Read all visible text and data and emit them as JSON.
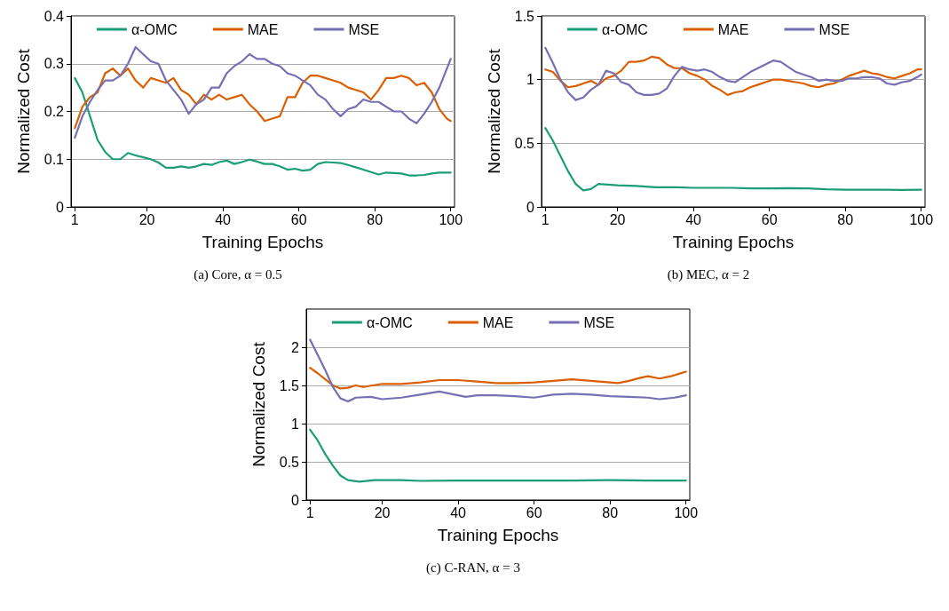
{
  "chart_data": [
    {
      "type": "line",
      "xlabel": "Training Epochs",
      "ylabel": "Normalized Cost",
      "annotations": [
        "(a) Core, α = 0.5"
      ],
      "xlim": [
        0,
        101
      ],
      "xticks": [
        1,
        20,
        40,
        60,
        80,
        100
      ],
      "ylim": [
        0,
        0.4
      ],
      "yticks": [
        0,
        0.1,
        0.2,
        0.3,
        0.4
      ],
      "grid": "y",
      "legend": "top",
      "line_style": "solid",
      "marker": "none",
      "series": [
        {
          "name": "α-OMC",
          "color": "#1b9e77",
          "x": [
            1,
            3,
            5,
            7,
            9,
            11,
            13,
            15,
            17,
            19,
            21,
            23,
            25,
            27,
            29,
            31,
            33,
            35,
            37,
            39,
            41,
            43,
            45,
            47,
            49,
            51,
            53,
            55,
            57,
            59,
            61,
            63,
            65,
            67,
            69,
            71,
            73,
            75,
            77,
            79,
            81,
            83,
            85,
            87,
            89,
            91,
            93,
            95,
            97,
            99,
            100
          ],
          "values": [
            0.27,
            0.24,
            0.19,
            0.14,
            0.115,
            0.1,
            0.1,
            0.113,
            0.108,
            0.104,
            0.1,
            0.093,
            0.082,
            0.082,
            0.085,
            0.082,
            0.085,
            0.09,
            0.088,
            0.094,
            0.097,
            0.09,
            0.094,
            0.099,
            0.095,
            0.09,
            0.09,
            0.085,
            0.078,
            0.08,
            0.076,
            0.078,
            0.09,
            0.094,
            0.093,
            0.092,
            0.088,
            0.083,
            0.078,
            0.073,
            0.068,
            0.072,
            0.071,
            0.07,
            0.066,
            0.066,
            0.067,
            0.07,
            0.072,
            0.072,
            0.072
          ]
        },
        {
          "name": "MAE",
          "color": "#d95f02",
          "x": [
            1,
            3,
            5,
            7,
            9,
            11,
            13,
            15,
            17,
            19,
            21,
            23,
            25,
            27,
            29,
            31,
            33,
            35,
            37,
            39,
            41,
            43,
            45,
            47,
            49,
            51,
            53,
            55,
            57,
            59,
            61,
            63,
            65,
            67,
            69,
            71,
            73,
            75,
            77,
            79,
            81,
            83,
            85,
            87,
            89,
            91,
            93,
            95,
            97,
            99,
            100
          ],
          "values": [
            0.165,
            0.21,
            0.23,
            0.24,
            0.28,
            0.29,
            0.275,
            0.29,
            0.265,
            0.25,
            0.27,
            0.265,
            0.26,
            0.27,
            0.245,
            0.235,
            0.215,
            0.235,
            0.225,
            0.235,
            0.225,
            0.23,
            0.235,
            0.215,
            0.2,
            0.18,
            0.185,
            0.19,
            0.23,
            0.23,
            0.26,
            0.275,
            0.275,
            0.27,
            0.265,
            0.26,
            0.25,
            0.245,
            0.24,
            0.225,
            0.245,
            0.27,
            0.27,
            0.275,
            0.27,
            0.255,
            0.26,
            0.24,
            0.205,
            0.185,
            0.18
          ]
        },
        {
          "name": "MSE",
          "color": "#7570b3",
          "x": [
            1,
            3,
            5,
            7,
            9,
            11,
            13,
            15,
            17,
            19,
            21,
            23,
            25,
            27,
            29,
            31,
            33,
            35,
            37,
            39,
            41,
            43,
            45,
            47,
            49,
            51,
            53,
            55,
            57,
            59,
            61,
            63,
            65,
            67,
            69,
            71,
            73,
            75,
            77,
            79,
            81,
            83,
            85,
            87,
            89,
            91,
            93,
            95,
            97,
            99,
            100
          ],
          "values": [
            0.145,
            0.19,
            0.22,
            0.245,
            0.265,
            0.265,
            0.275,
            0.3,
            0.335,
            0.32,
            0.305,
            0.3,
            0.265,
            0.245,
            0.225,
            0.195,
            0.215,
            0.225,
            0.25,
            0.25,
            0.28,
            0.295,
            0.305,
            0.32,
            0.31,
            0.31,
            0.3,
            0.295,
            0.28,
            0.275,
            0.265,
            0.255,
            0.235,
            0.225,
            0.205,
            0.19,
            0.205,
            0.21,
            0.225,
            0.22,
            0.22,
            0.21,
            0.2,
            0.2,
            0.185,
            0.175,
            0.195,
            0.22,
            0.25,
            0.29,
            0.31
          ]
        }
      ]
    },
    {
      "type": "line",
      "xlabel": "Training Epochs",
      "ylabel": "Normalized Cost",
      "annotations": [
        "(b) MEC, α = 2"
      ],
      "xlim": [
        0,
        101
      ],
      "xticks": [
        1,
        20,
        40,
        60,
        80,
        100
      ],
      "ylim": [
        0,
        1.5
      ],
      "yticks": [
        0,
        0.5,
        1,
        1.5
      ],
      "grid": "y",
      "legend": "top",
      "line_style": "solid",
      "marker": "none",
      "series": [
        {
          "name": "α-OMC",
          "color": "#1b9e77",
          "x": [
            1,
            3,
            5,
            7,
            9,
            11,
            13,
            15,
            20,
            25,
            30,
            35,
            40,
            45,
            50,
            55,
            60,
            65,
            70,
            75,
            80,
            85,
            90,
            95,
            100
          ],
          "values": [
            0.62,
            0.52,
            0.4,
            0.28,
            0.18,
            0.13,
            0.14,
            0.18,
            0.17,
            0.165,
            0.155,
            0.155,
            0.15,
            0.15,
            0.15,
            0.145,
            0.145,
            0.148,
            0.145,
            0.138,
            0.135,
            0.135,
            0.135,
            0.133,
            0.135
          ]
        },
        {
          "name": "MAE",
          "color": "#d95f02",
          "x": [
            1,
            3,
            5,
            7,
            9,
            11,
            13,
            15,
            17,
            19,
            21,
            23,
            25,
            27,
            29,
            31,
            33,
            35,
            37,
            39,
            41,
            43,
            45,
            47,
            49,
            51,
            53,
            55,
            57,
            59,
            61,
            63,
            65,
            67,
            69,
            71,
            73,
            75,
            77,
            79,
            81,
            83,
            85,
            87,
            89,
            91,
            93,
            95,
            97,
            99,
            100
          ],
          "values": [
            1.08,
            1.06,
            0.99,
            0.94,
            0.95,
            0.97,
            0.99,
            0.96,
            1.01,
            1.03,
            1.07,
            1.14,
            1.14,
            1.15,
            1.18,
            1.17,
            1.12,
            1.09,
            1.09,
            1.05,
            1.03,
            1.0,
            0.95,
            0.92,
            0.88,
            0.9,
            0.91,
            0.94,
            0.96,
            0.98,
            1.0,
            1.0,
            0.99,
            0.98,
            0.97,
            0.95,
            0.94,
            0.96,
            0.97,
            1.0,
            1.03,
            1.05,
            1.07,
            1.05,
            1.04,
            1.02,
            1.01,
            1.03,
            1.05,
            1.08,
            1.08
          ]
        },
        {
          "name": "MSE",
          "color": "#7570b3",
          "x": [
            1,
            3,
            5,
            7,
            9,
            11,
            13,
            15,
            17,
            19,
            21,
            23,
            25,
            27,
            29,
            31,
            33,
            35,
            37,
            39,
            41,
            43,
            45,
            47,
            49,
            51,
            53,
            55,
            57,
            59,
            61,
            63,
            65,
            67,
            69,
            71,
            73,
            75,
            77,
            79,
            81,
            83,
            85,
            87,
            89,
            91,
            93,
            95,
            97,
            99,
            100
          ],
          "values": [
            1.25,
            1.13,
            1.0,
            0.9,
            0.84,
            0.86,
            0.92,
            0.96,
            1.07,
            1.05,
            0.98,
            0.96,
            0.9,
            0.88,
            0.88,
            0.89,
            0.93,
            1.03,
            1.1,
            1.08,
            1.07,
            1.08,
            1.06,
            1.02,
            0.99,
            0.98,
            1.02,
            1.06,
            1.09,
            1.12,
            1.15,
            1.14,
            1.1,
            1.06,
            1.04,
            1.02,
            0.99,
            1.0,
            0.99,
            0.99,
            1.01,
            1.01,
            1.02,
            1.02,
            1.01,
            0.97,
            0.96,
            0.98,
            0.99,
            1.02,
            1.04
          ]
        }
      ]
    },
    {
      "type": "line",
      "xlabel": "Training Epochs",
      "ylabel": "Normalized Cost",
      "annotations": [
        "(c) C-RAN, α = 3"
      ],
      "xlim": [
        0,
        101
      ],
      "xticks": [
        1,
        20,
        40,
        60,
        80,
        100
      ],
      "ylim": [
        0,
        2.5
      ],
      "yticks": [
        0,
        0.5,
        1,
        1.5,
        2
      ],
      "grid": "y",
      "legend": "top",
      "line_style": "solid",
      "marker": "none",
      "series": [
        {
          "name": "α-OMC",
          "color": "#1b9e77",
          "x": [
            1,
            3,
            5,
            7,
            9,
            11,
            14,
            18,
            25,
            30,
            40,
            50,
            60,
            70,
            80,
            90,
            100
          ],
          "values": [
            0.92,
            0.78,
            0.6,
            0.45,
            0.32,
            0.26,
            0.24,
            0.26,
            0.26,
            0.25,
            0.255,
            0.255,
            0.255,
            0.255,
            0.26,
            0.255,
            0.255
          ]
        },
        {
          "name": "MAE",
          "color": "#d95f02",
          "x": [
            1,
            3,
            5,
            7,
            9,
            11,
            13,
            15,
            20,
            25,
            30,
            35,
            40,
            45,
            50,
            55,
            60,
            65,
            70,
            75,
            80,
            82,
            85,
            88,
            90,
            93,
            96,
            100
          ],
          "values": [
            1.73,
            1.66,
            1.58,
            1.5,
            1.46,
            1.47,
            1.5,
            1.48,
            1.52,
            1.52,
            1.54,
            1.57,
            1.57,
            1.55,
            1.53,
            1.53,
            1.54,
            1.56,
            1.58,
            1.56,
            1.54,
            1.53,
            1.56,
            1.6,
            1.62,
            1.59,
            1.62,
            1.68
          ]
        },
        {
          "name": "MSE",
          "color": "#7570b3",
          "x": [
            1,
            3,
            5,
            7,
            9,
            11,
            13,
            17,
            20,
            25,
            30,
            35,
            40,
            42,
            45,
            50,
            55,
            60,
            65,
            70,
            75,
            80,
            85,
            90,
            93,
            97,
            100
          ],
          "values": [
            2.1,
            1.9,
            1.7,
            1.48,
            1.33,
            1.29,
            1.34,
            1.35,
            1.32,
            1.34,
            1.38,
            1.42,
            1.37,
            1.35,
            1.37,
            1.37,
            1.36,
            1.34,
            1.38,
            1.39,
            1.38,
            1.36,
            1.35,
            1.34,
            1.32,
            1.34,
            1.37
          ]
        }
      ]
    }
  ]
}
